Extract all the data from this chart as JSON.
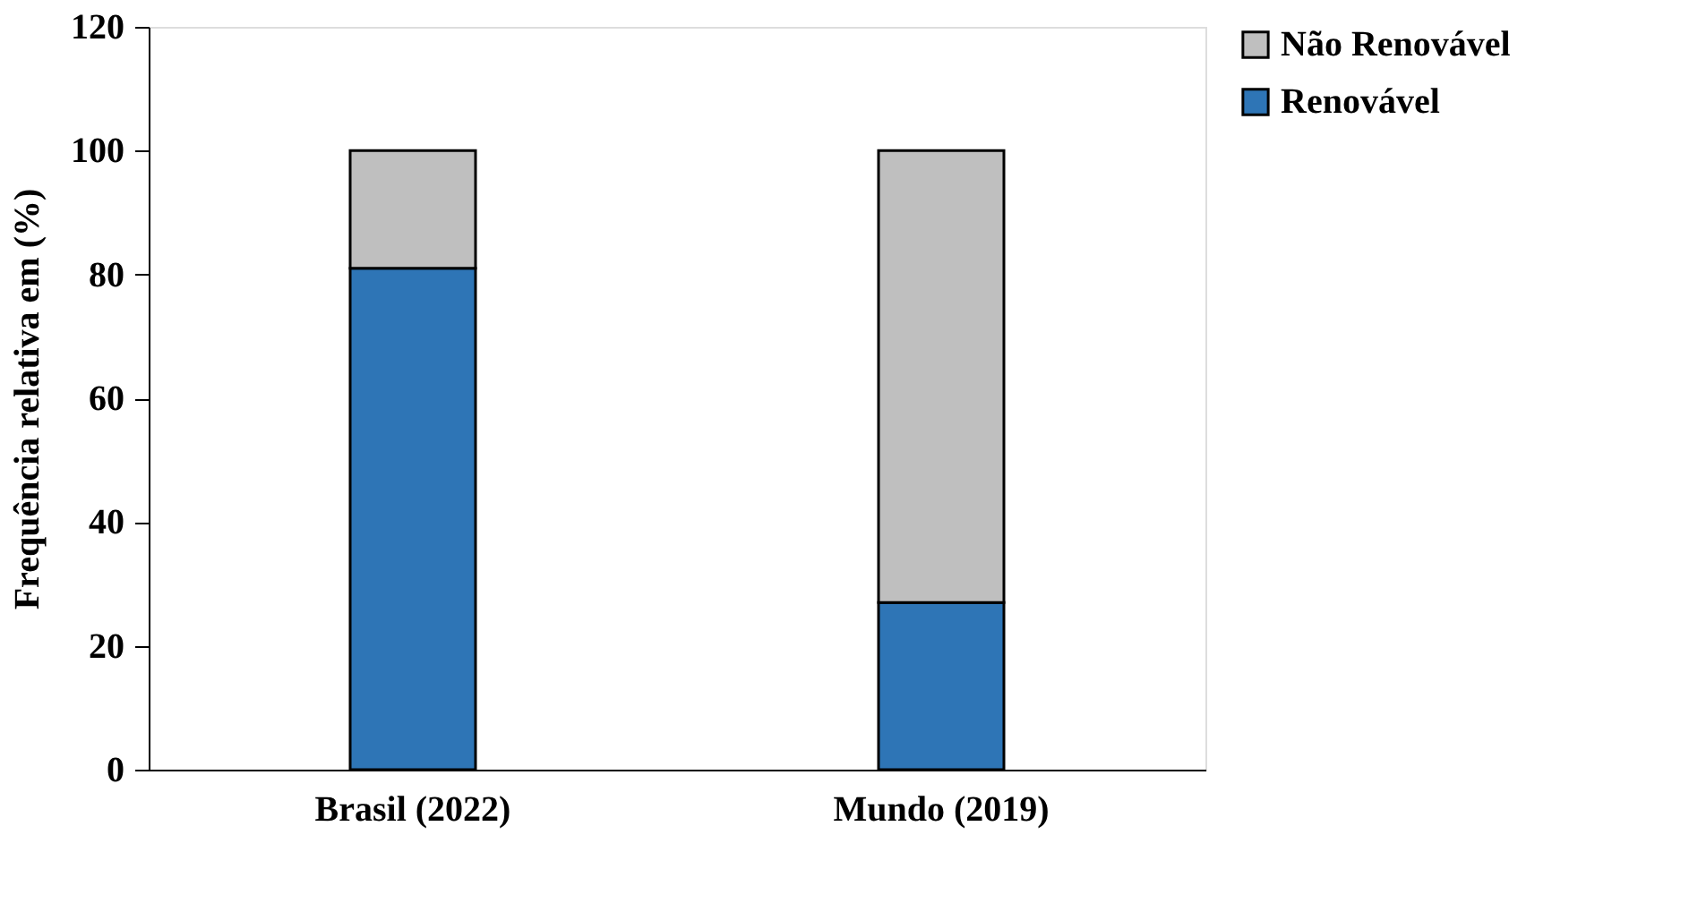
{
  "chart_data": {
    "type": "bar",
    "stacked": true,
    "ylabel": "Frequência relativa em (%)",
    "categories": [
      "Brasil (2022)",
      "Mundo (2019)"
    ],
    "series": [
      {
        "name": "Renovável",
        "color": "#2e75b6",
        "values": [
          81,
          27
        ]
      },
      {
        "name": "Não Renovável",
        "color": "#bfbfbf",
        "values": [
          19,
          73
        ]
      }
    ],
    "ylim": [
      0,
      120
    ],
    "yticks": [
      0,
      20,
      40,
      60,
      80,
      100,
      120
    ],
    "grid": false,
    "legend": "right"
  }
}
